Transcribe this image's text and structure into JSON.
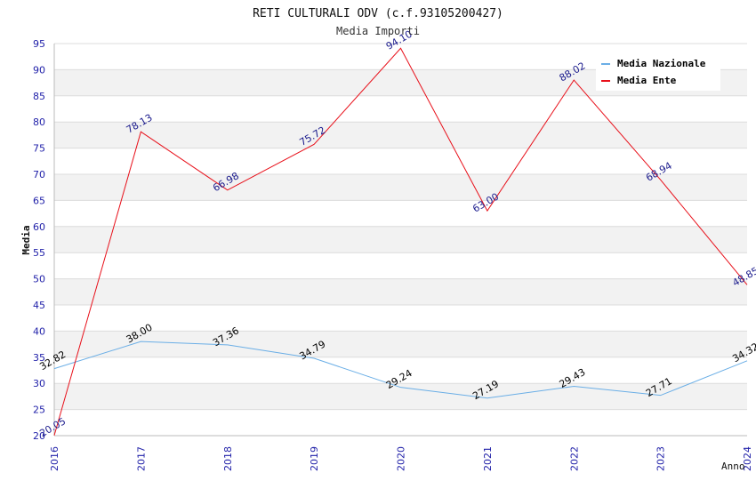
{
  "chart_data": {
    "type": "line",
    "title": "RETI CULTURALI ODV (c.f.93105200427)",
    "subtitle": "Media Importi",
    "xlabel": "Anno",
    "ylabel": "Media",
    "x": [
      "2016",
      "2017",
      "2018",
      "2019",
      "2020",
      "2021",
      "2022",
      "2023",
      "2024"
    ],
    "y_ticks": [
      "20",
      "25",
      "30",
      "35",
      "40",
      "45",
      "50",
      "55",
      "60",
      "65",
      "70",
      "75",
      "80",
      "85",
      "90",
      "95"
    ],
    "ylim": [
      20,
      95
    ],
    "grid": "horizontal-bands",
    "legend_position": "top-right",
    "series": [
      {
        "name": "Media Nazionale",
        "color": "#6aaee6",
        "label_color": "#000000",
        "values": [
          32.82,
          38.0,
          37.36,
          34.79,
          29.24,
          27.19,
          29.43,
          27.71,
          34.32
        ],
        "labels": [
          "32.82",
          "38.00",
          "37.36",
          "34.79",
          "29.24",
          "27.19",
          "29.43",
          "27.71",
          "34.32"
        ]
      },
      {
        "name": "Media Ente",
        "color": "#e8101a",
        "label_color": "#1a1a8c",
        "values": [
          20.05,
          78.13,
          66.98,
          75.72,
          94.1,
          63.0,
          88.02,
          68.94,
          48.85
        ],
        "labels": [
          "20.05",
          "78.13",
          "66.98",
          "75.72",
          "94.10",
          "63.00",
          "88.02",
          "68.94",
          "48.85"
        ]
      }
    ]
  }
}
